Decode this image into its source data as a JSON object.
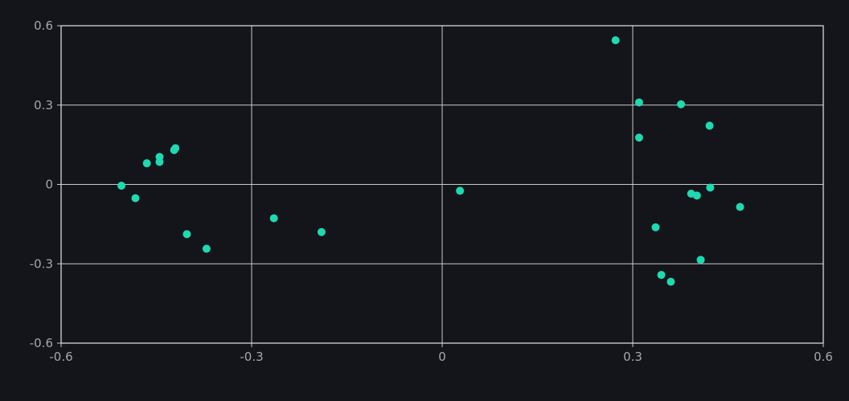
{
  "chart_data": {
    "type": "scatter",
    "title": "",
    "xlabel": "",
    "ylabel": "",
    "xlim": [
      -0.6,
      0.6
    ],
    "ylim": [
      -0.6,
      0.6
    ],
    "x_ticks": [
      "-0.6",
      "-0.3",
      "0",
      "0.3",
      "0.6"
    ],
    "y_ticks": [
      "0.6",
      "0.3",
      "0",
      "-0.3",
      "-0.6"
    ],
    "x_tick_values": [
      -0.6,
      -0.3,
      0,
      0.3,
      0.6
    ],
    "y_tick_values": [
      0.6,
      0.3,
      0,
      -0.3,
      -0.6
    ],
    "grid": true,
    "colors": {
      "background": "#13151a",
      "point": "#1fd9b0",
      "grid": "#c9c9cc",
      "text": "#a6a6ad"
    },
    "series": [
      {
        "points": [
          {
            "x": 0.273,
            "y": 0.545
          },
          {
            "x": 0.31,
            "y": 0.31
          },
          {
            "x": 0.376,
            "y": 0.303
          },
          {
            "x": 0.421,
            "y": 0.222
          },
          {
            "x": 0.31,
            "y": 0.177
          },
          {
            "x": 0.392,
            "y": -0.035
          },
          {
            "x": 0.401,
            "y": -0.042
          },
          {
            "x": 0.422,
            "y": -0.012
          },
          {
            "x": 0.469,
            "y": -0.085
          },
          {
            "x": 0.336,
            "y": -0.162
          },
          {
            "x": 0.407,
            "y": -0.285
          },
          {
            "x": 0.345,
            "y": -0.342
          },
          {
            "x": 0.36,
            "y": -0.368
          },
          {
            "x": 0.028,
            "y": -0.024
          },
          {
            "x": -0.19,
            "y": -0.18
          },
          {
            "x": -0.265,
            "y": -0.128
          },
          {
            "x": -0.371,
            "y": -0.243
          },
          {
            "x": -0.402,
            "y": -0.188
          },
          {
            "x": -0.505,
            "y": -0.005
          },
          {
            "x": -0.483,
            "y": -0.052
          },
          {
            "x": -0.465,
            "y": 0.08
          },
          {
            "x": -0.445,
            "y": 0.104
          },
          {
            "x": -0.445,
            "y": 0.085
          },
          {
            "x": -0.422,
            "y": 0.13
          },
          {
            "x": -0.42,
            "y": 0.137
          }
        ]
      }
    ]
  }
}
